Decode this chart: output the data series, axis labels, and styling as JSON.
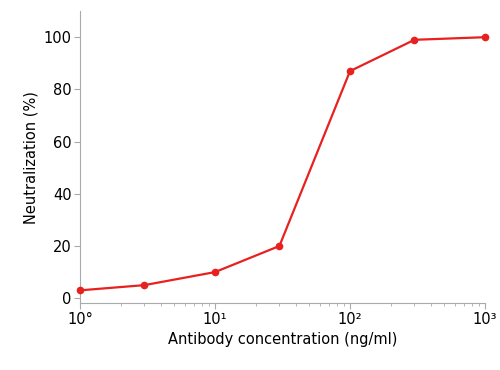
{
  "x": [
    1,
    3,
    10,
    30,
    100,
    300,
    1000
  ],
  "y": [
    3,
    5,
    10,
    20,
    87,
    99,
    100
  ],
  "line_color": "#e82020",
  "marker_color": "#e82020",
  "marker_size": 5.5,
  "line_width": 1.6,
  "xlabel": "Antibody concentration (ng/ml)",
  "ylabel": "Neutralization (%)",
  "xlim": [
    1,
    1000
  ],
  "ylim": [
    -2,
    110
  ],
  "yticks": [
    0,
    20,
    40,
    60,
    80,
    100
  ],
  "xtick_vals": [
    1,
    10,
    100,
    1000
  ],
  "xtick_labels": [
    "10°",
    "10¹",
    "10²",
    "10³"
  ],
  "background_color": "#ffffff",
  "axis_fontsize": 10.5,
  "spine_color": "#aaaaaa",
  "spine_linewidth": 0.8
}
